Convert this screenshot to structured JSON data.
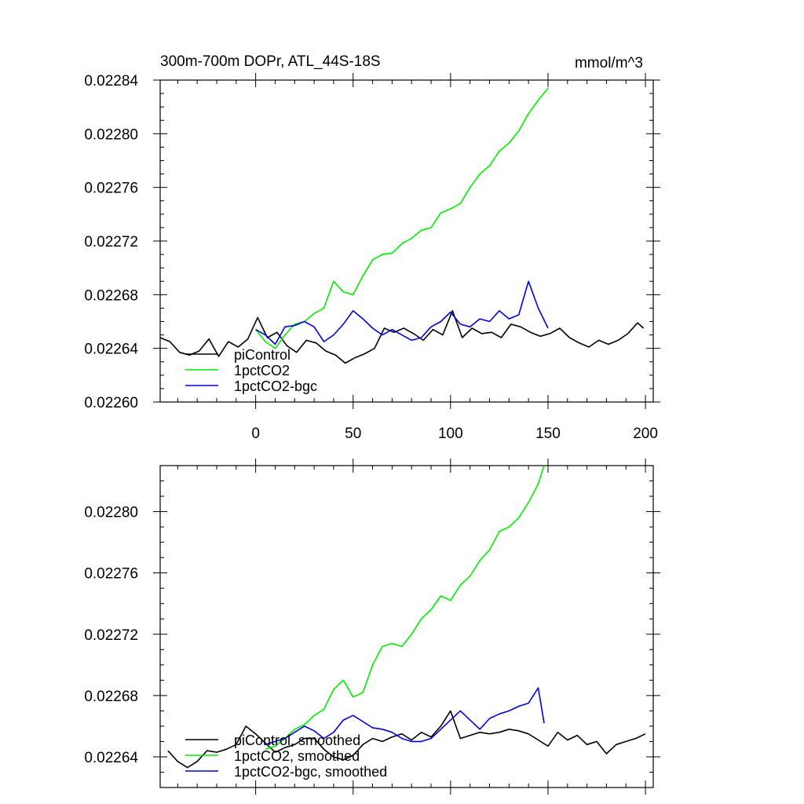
{
  "title": "300m-700m DOPr, ATL_44S-18S",
  "units": "mmol/m^3",
  "colors": {
    "piControl": "#000000",
    "1pctCO2": "#00ee00",
    "1pctCO2-bgc": "#0000dd"
  },
  "chart_data": [
    {
      "type": "line",
      "panel": "top",
      "title": "300m-700m DOPr, ATL_44S-18S",
      "units": "mmol/m^3",
      "xlim": [
        -49,
        204
      ],
      "ylim": [
        0.0226,
        0.02284
      ],
      "xticks": [
        0,
        50,
        100,
        150,
        200
      ],
      "xtick_labels": [
        "0",
        "50",
        "100",
        "150",
        "200"
      ],
      "yticks": [
        0.0226,
        0.02264,
        0.02268,
        0.02272,
        0.02276,
        0.0228,
        0.02284
      ],
      "ytick_labels": [
        "0.02260",
        "0.02264",
        "0.02268",
        "0.02272",
        "0.02276",
        "0.02280",
        "0.02284"
      ],
      "legend": [
        "piControl",
        "1pctCO2",
        "1pctCO2-bgc"
      ],
      "legend_location": "lower-left",
      "series": [
        {
          "name": "piControl",
          "color": "#000000",
          "x": [
            -49,
            -44,
            -39,
            -34,
            -29,
            -24,
            -19,
            -14,
            -9,
            -4,
            1,
            6,
            11,
            16,
            21,
            26,
            31,
            36,
            41,
            46,
            51,
            56,
            61,
            66,
            71,
            76,
            81,
            86,
            91,
            96,
            101,
            106,
            111,
            116,
            121,
            126,
            131,
            136,
            141,
            146,
            151,
            156,
            161,
            166,
            171,
            176,
            181,
            186,
            191,
            196,
            199
          ],
          "y": [
            0.022648,
            0.022645,
            0.022637,
            0.022635,
            0.022638,
            0.022647,
            0.022634,
            0.022645,
            0.022641,
            0.022647,
            0.022663,
            0.022648,
            0.022652,
            0.022642,
            0.022637,
            0.022646,
            0.022644,
            0.022638,
            0.022635,
            0.022629,
            0.022633,
            0.022636,
            0.02264,
            0.022655,
            0.022652,
            0.022655,
            0.022651,
            0.022646,
            0.022654,
            0.02265,
            0.022668,
            0.022648,
            0.022655,
            0.022651,
            0.022652,
            0.022648,
            0.022658,
            0.022656,
            0.022652,
            0.022649,
            0.022651,
            0.022655,
            0.022648,
            0.022644,
            0.022641,
            0.022646,
            0.022643,
            0.022646,
            0.022651,
            0.022659,
            0.022655
          ]
        },
        {
          "name": "1pctCO2",
          "color": "#00ee00",
          "x": [
            0,
            5,
            10,
            15,
            20,
            25,
            30,
            35,
            40,
            45,
            50,
            55,
            60,
            65,
            70,
            75,
            80,
            85,
            90,
            95,
            100,
            105,
            110,
            115,
            120,
            125,
            130,
            135,
            140,
            145,
            150
          ],
          "y": [
            0.022654,
            0.022645,
            0.02264,
            0.02265,
            0.022658,
            0.02266,
            0.022666,
            0.02267,
            0.02269,
            0.022682,
            0.02268,
            0.022694,
            0.022706,
            0.02271,
            0.022711,
            0.022718,
            0.022722,
            0.022728,
            0.02273,
            0.022741,
            0.022744,
            0.022748,
            0.02276,
            0.02277,
            0.022776,
            0.022787,
            0.022793,
            0.022802,
            0.022815,
            0.022825,
            0.022834
          ]
        },
        {
          "name": "1pctCO2-bgc",
          "color": "#0000dd",
          "x": [
            0,
            5,
            10,
            15,
            20,
            25,
            30,
            35,
            40,
            45,
            50,
            55,
            60,
            65,
            70,
            75,
            80,
            85,
            90,
            95,
            100,
            105,
            110,
            115,
            120,
            125,
            130,
            135,
            140,
            145,
            150
          ],
          "y": [
            0.022654,
            0.02265,
            0.022643,
            0.022656,
            0.022657,
            0.02266,
            0.022656,
            0.022645,
            0.02265,
            0.022658,
            0.022668,
            0.022662,
            0.022655,
            0.02265,
            0.022654,
            0.02265,
            0.022646,
            0.022648,
            0.022656,
            0.02266,
            0.022667,
            0.022658,
            0.022656,
            0.022662,
            0.02266,
            0.022668,
            0.022662,
            0.022665,
            0.02269,
            0.02267,
            0.022655
          ]
        }
      ]
    },
    {
      "type": "line",
      "panel": "bottom",
      "title": "",
      "xlim": [
        -49,
        204
      ],
      "ylim": [
        0.02262,
        0.02283
      ],
      "xticks": [
        0,
        50,
        100,
        150,
        200
      ],
      "xtick_labels": [],
      "yticks": [
        0.02264,
        0.02268,
        0.02272,
        0.02276,
        0.0228
      ],
      "ytick_labels": [
        "0.02264",
        "0.02268",
        "0.02272",
        "0.02276",
        "0.02280"
      ],
      "legend": [
        "piControl, smoothed",
        "1pctCO2, smoothed",
        "1pctCO2-bgc, smoothed"
      ],
      "legend_location": "lower-left",
      "series": [
        {
          "name": "piControl, smoothed",
          "color": "#000000",
          "x": [
            -45,
            -40,
            -35,
            -30,
            -25,
            -20,
            -15,
            -10,
            -5,
            0,
            5,
            10,
            15,
            20,
            25,
            30,
            35,
            40,
            45,
            50,
            55,
            60,
            65,
            70,
            75,
            80,
            85,
            90,
            95,
            100,
            105,
            110,
            115,
            120,
            125,
            130,
            135,
            140,
            145,
            150,
            155,
            160,
            165,
            170,
            175,
            180,
            185,
            190,
            195,
            200
          ],
          "y": [
            0.022644,
            0.022637,
            0.022633,
            0.022637,
            0.022644,
            0.022643,
            0.022645,
            0.022648,
            0.02266,
            0.022655,
            0.022649,
            0.022643,
            0.022646,
            0.022648,
            0.022652,
            0.022652,
            0.022645,
            0.02264,
            0.022638,
            0.022641,
            0.022648,
            0.022652,
            0.02265,
            0.022653,
            0.022655,
            0.022651,
            0.022656,
            0.022653,
            0.02266,
            0.02267,
            0.022652,
            0.022654,
            0.022656,
            0.022655,
            0.022656,
            0.022658,
            0.022657,
            0.022655,
            0.022651,
            0.022647,
            0.022656,
            0.022651,
            0.022654,
            0.022648,
            0.02265,
            0.022642,
            0.022648,
            0.02265,
            0.022652,
            0.022655
          ]
        },
        {
          "name": "1pctCO2, smoothed",
          "color": "#00ee00",
          "x": [
            5,
            10,
            15,
            20,
            25,
            30,
            35,
            40,
            45,
            50,
            55,
            60,
            65,
            70,
            75,
            80,
            85,
            90,
            95,
            100,
            105,
            110,
            115,
            120,
            125,
            130,
            135,
            140,
            145,
            148
          ],
          "y": [
            0.022645,
            0.022647,
            0.022652,
            0.022658,
            0.022661,
            0.022667,
            0.022671,
            0.022684,
            0.02269,
            0.022679,
            0.022682,
            0.0227,
            0.022712,
            0.022714,
            0.022712,
            0.02272,
            0.02273,
            0.022736,
            0.022745,
            0.022742,
            0.022752,
            0.022758,
            0.022768,
            0.022775,
            0.022787,
            0.02279,
            0.022796,
            0.022806,
            0.022818,
            0.02283
          ]
        },
        {
          "name": "1pctCO2-bgc, smoothed",
          "color": "#0000dd",
          "x": [
            5,
            10,
            15,
            20,
            25,
            30,
            35,
            40,
            45,
            50,
            55,
            60,
            65,
            70,
            75,
            80,
            85,
            90,
            95,
            100,
            105,
            110,
            115,
            120,
            125,
            130,
            135,
            140,
            145,
            148
          ],
          "y": [
            0.022648,
            0.02265,
            0.022652,
            0.022656,
            0.02266,
            0.022657,
            0.022652,
            0.022656,
            0.022664,
            0.022667,
            0.022663,
            0.022659,
            0.022658,
            0.022656,
            0.022652,
            0.02265,
            0.02265,
            0.022652,
            0.022658,
            0.022664,
            0.02267,
            0.022664,
            0.022658,
            0.022665,
            0.022668,
            0.02267,
            0.022673,
            0.022675,
            0.022685,
            0.022662
          ]
        }
      ]
    }
  ]
}
